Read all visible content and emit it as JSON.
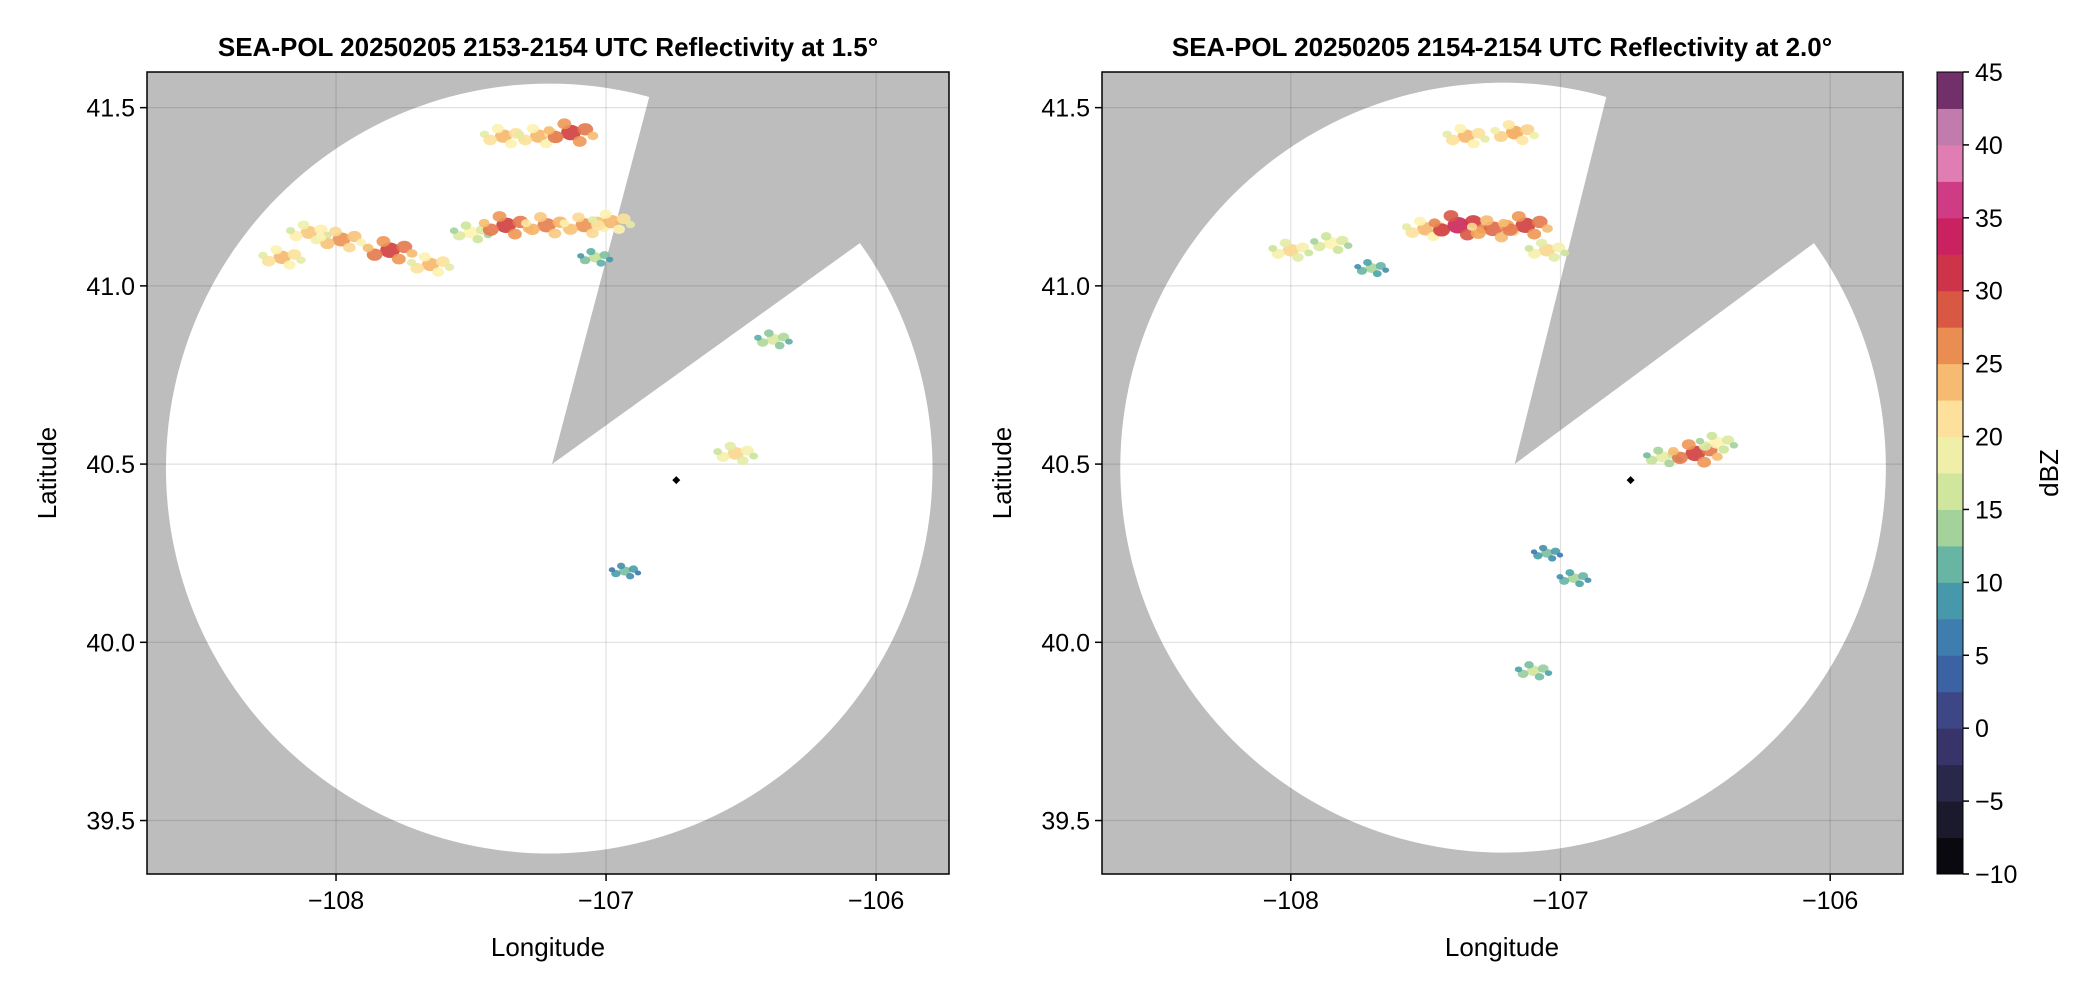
{
  "chart_data": [
    {
      "type": "heatmap",
      "title": "SEA-POL 20250205 2153-2154 UTC Reflectivity at 1.5°",
      "xlabel": "Longitude",
      "ylabel": "Latitude",
      "xlim": [
        -108.7,
        -105.73
      ],
      "ylim": [
        39.35,
        41.6
      ],
      "xticks": [
        -108,
        -107,
        -106
      ],
      "xtick_labels": [
        "−108",
        "−107",
        "−106"
      ],
      "yticks": [
        39.5,
        40.0,
        40.5,
        41.0,
        41.5
      ],
      "ytick_labels": [
        "39.5",
        "40.0",
        "40.5",
        "41.0",
        "41.5"
      ],
      "grid": true,
      "radar": {
        "lon": -106.74,
        "lat": 40.455
      },
      "blocked_sector": {
        "apex": [
          -107.2,
          40.5
        ],
        "edges": [
          [
            -106.84,
            41.53
          ],
          [
            -106.06,
            41.12
          ]
        ]
      },
      "cells": [
        {
          "lon": -108.2,
          "lat": 41.08,
          "dbz": 24
        },
        {
          "lon": -108.1,
          "lat": 41.15,
          "dbz": 23
        },
        {
          "lon": -107.98,
          "lat": 41.13,
          "dbz": 26
        },
        {
          "lon": -107.8,
          "lat": 41.1,
          "dbz": 30
        },
        {
          "lon": -107.65,
          "lat": 41.06,
          "dbz": 24
        },
        {
          "lon": -107.5,
          "lat": 41.15,
          "dbz": 20
        },
        {
          "lon": -107.37,
          "lat": 41.17,
          "dbz": 30
        },
        {
          "lon": -107.22,
          "lat": 41.17,
          "dbz": 27
        },
        {
          "lon": -107.08,
          "lat": 41.17,
          "dbz": 26
        },
        {
          "lon": -106.98,
          "lat": 41.18,
          "dbz": 24
        },
        {
          "lon": -107.04,
          "lat": 41.08,
          "dbz": 15
        },
        {
          "lon": -107.38,
          "lat": 41.42,
          "dbz": 24
        },
        {
          "lon": -107.25,
          "lat": 41.42,
          "dbz": 24
        },
        {
          "lon": -107.13,
          "lat": 41.43,
          "dbz": 30
        },
        {
          "lon": -106.52,
          "lat": 40.53,
          "dbz": 22
        },
        {
          "lon": -106.93,
          "lat": 40.2,
          "dbz": 12
        },
        {
          "lon": -106.38,
          "lat": 40.85,
          "dbz": 17
        }
      ]
    },
    {
      "type": "heatmap",
      "title": "SEA-POL 20250205 2154-2154 UTC Reflectivity at 2.0°",
      "xlabel": "Longitude",
      "ylabel": "Latitude",
      "xlim": [
        -108.7,
        -105.73
      ],
      "ylim": [
        39.35,
        41.6
      ],
      "xticks": [
        -108,
        -107,
        -106
      ],
      "xtick_labels": [
        "−108",
        "−107",
        "−106"
      ],
      "yticks": [
        39.5,
        40.0,
        40.5,
        41.0,
        41.5
      ],
      "ytick_labels": [
        "39.5",
        "40.0",
        "40.5",
        "41.0",
        "41.5"
      ],
      "grid": true,
      "radar": {
        "lon": -106.74,
        "lat": 40.455
      },
      "blocked_sector": {
        "apex": [
          -107.17,
          40.5
        ],
        "edges": [
          [
            -106.83,
            41.53
          ],
          [
            -106.06,
            41.12
          ]
        ]
      },
      "cells": [
        {
          "lon": -108.0,
          "lat": 41.1,
          "dbz": 22
        },
        {
          "lon": -107.85,
          "lat": 41.12,
          "dbz": 20
        },
        {
          "lon": -107.7,
          "lat": 41.05,
          "dbz": 14
        },
        {
          "lon": -107.5,
          "lat": 41.16,
          "dbz": 24
        },
        {
          "lon": -107.38,
          "lat": 41.17,
          "dbz": 33
        },
        {
          "lon": -107.25,
          "lat": 41.16,
          "dbz": 28
        },
        {
          "lon": -107.13,
          "lat": 41.17,
          "dbz": 30
        },
        {
          "lon": -107.05,
          "lat": 41.1,
          "dbz": 22
        },
        {
          "lon": -107.35,
          "lat": 41.42,
          "dbz": 24
        },
        {
          "lon": -107.17,
          "lat": 41.43,
          "dbz": 25
        },
        {
          "lon": -106.62,
          "lat": 40.52,
          "dbz": 18
        },
        {
          "lon": -106.5,
          "lat": 40.53,
          "dbz": 30
        },
        {
          "lon": -106.42,
          "lat": 40.56,
          "dbz": 20
        },
        {
          "lon": -107.05,
          "lat": 40.25,
          "dbz": 12
        },
        {
          "lon": -106.95,
          "lat": 40.18,
          "dbz": 14
        },
        {
          "lon": -107.1,
          "lat": 39.92,
          "dbz": 16
        }
      ]
    }
  ],
  "colorbar": {
    "label": "dBZ",
    "min": -10,
    "max": 45,
    "ticks": [
      45,
      40,
      35,
      30,
      25,
      20,
      15,
      10,
      5,
      0,
      -5,
      -10
    ],
    "tick_labels": [
      "45",
      "40",
      "35",
      "30",
      "25",
      "20",
      "15",
      "10",
      "5",
      "0",
      "−5",
      "−10"
    ]
  },
  "colors": {
    "blocked": "#bdbdbd",
    "coverage": "#ffffff",
    "radar_marker": "#000000"
  }
}
